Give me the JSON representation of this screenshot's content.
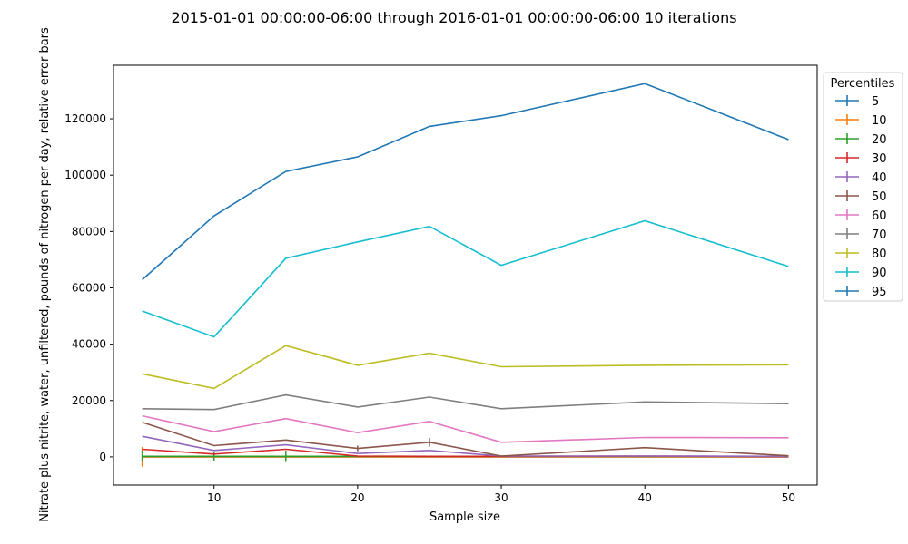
{
  "chart_data": {
    "type": "line",
    "title": "2015-01-01 00:00:00-06:00 through 2016-01-01 00:00:00-06:00 10 iterations",
    "xlabel": "Sample size",
    "ylabel": "Nitrate plus nitrite, water, unfiltered, pounds of nitrogen per day, relative error bars",
    "x": [
      5,
      10,
      15,
      20,
      25,
      30,
      40,
      50
    ],
    "xlim": [
      3,
      52
    ],
    "ylim": [
      -10000,
      139000
    ],
    "xticks": [
      10,
      20,
      30,
      40,
      50
    ],
    "yticks": [
      0,
      20000,
      40000,
      60000,
      80000,
      100000,
      120000
    ],
    "grid": false,
    "legend_title": "Percentiles",
    "legend_position": "outside-right",
    "series": [
      {
        "name": "5",
        "color": "#1f77b4",
        "values": [
          0,
          0,
          0,
          0,
          0,
          0,
          0,
          0
        ]
      },
      {
        "name": "10",
        "color": "#ff7f0e",
        "values": [
          0,
          0,
          0,
          0,
          0,
          0,
          0,
          0
        ],
        "err": [
          3500,
          1000,
          800,
          0,
          0,
          0,
          0,
          0
        ]
      },
      {
        "name": "20",
        "color": "#2ca02c",
        "values": [
          200,
          200,
          200,
          200,
          200,
          200,
          200,
          200
        ],
        "err": [
          2000,
          1500,
          2000,
          0,
          0,
          0,
          0,
          0
        ]
      },
      {
        "name": "30",
        "color": "#d62728",
        "values": [
          2700,
          1000,
          2700,
          300,
          200,
          200,
          300,
          100
        ]
      },
      {
        "name": "40",
        "color": "#9467bd",
        "values": [
          7300,
          2300,
          4300,
          1200,
          2300,
          300,
          300,
          200
        ]
      },
      {
        "name": "50",
        "color": "#8c564b",
        "values": [
          12300,
          4000,
          6000,
          3000,
          5200,
          300,
          3300,
          400
        ],
        "err": [
          0,
          0,
          0,
          1000,
          1500,
          0,
          0,
          0
        ]
      },
      {
        "name": "60",
        "color": "#e377c2",
        "values": [
          14600,
          9000,
          13600,
          8600,
          12600,
          5200,
          6900,
          6800
        ]
      },
      {
        "name": "70",
        "color": "#7f7f7f",
        "values": [
          17100,
          16800,
          22000,
          17700,
          21200,
          17100,
          19500,
          18900
        ]
      },
      {
        "name": "80",
        "color": "#bcbd22",
        "values": [
          29500,
          24300,
          39500,
          32500,
          36800,
          32000,
          32500,
          32700
        ]
      },
      {
        "name": "90",
        "color": "#17becf",
        "values": [
          51800,
          42600,
          70500,
          76300,
          81800,
          68000,
          83800,
          67600
        ]
      },
      {
        "name": "95",
        "color": "#1f77b4",
        "values": [
          62900,
          85500,
          101300,
          106500,
          117300,
          121100,
          132500,
          112600
        ]
      }
    ]
  }
}
